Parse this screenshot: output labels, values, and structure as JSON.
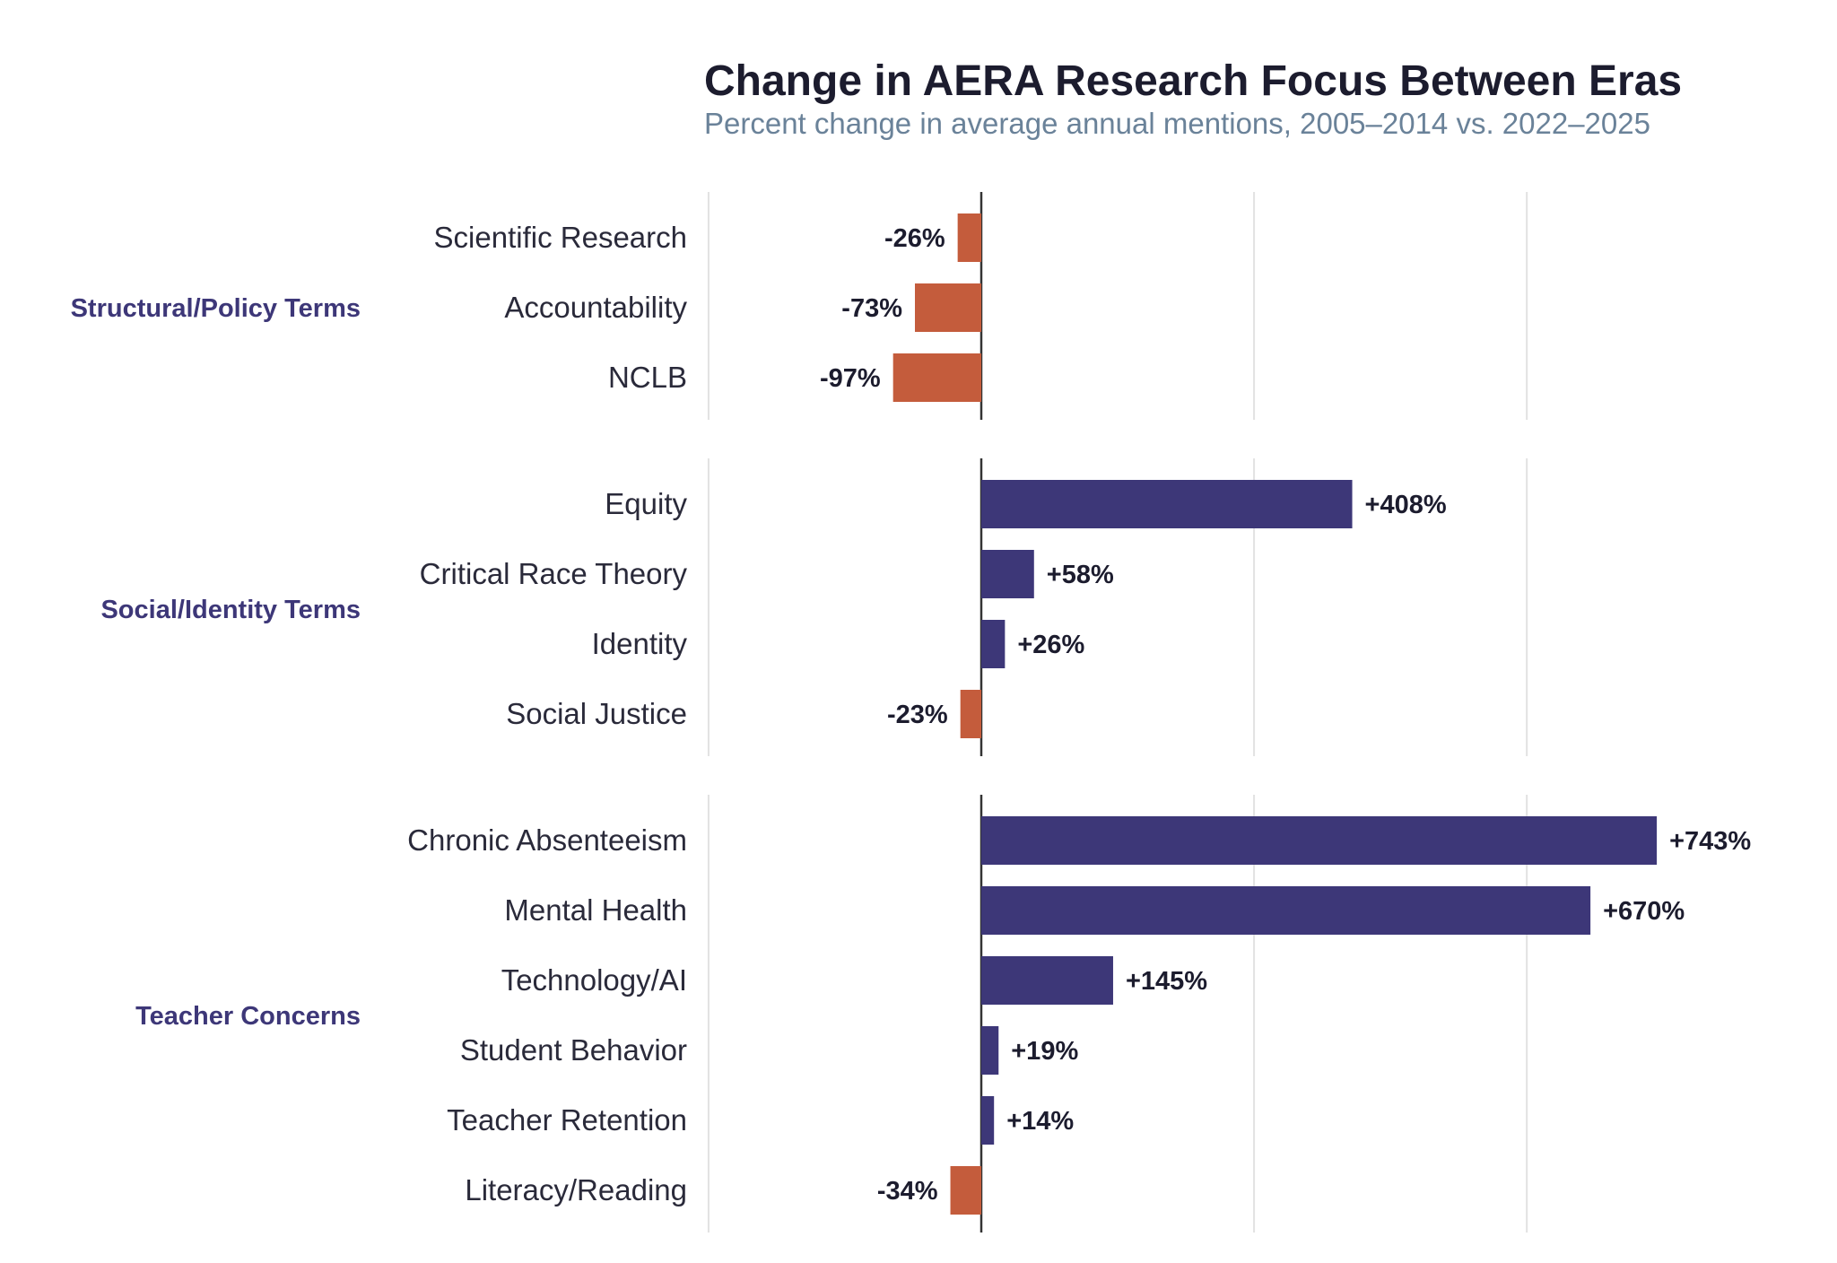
{
  "chart_data": {
    "type": "bar",
    "orientation": "horizontal",
    "title": "Change in AERA Research Focus Between Eras",
    "subtitle": "Percent change in average annual mentions, 2005–2014 vs. 2022–2025",
    "xlabel": "",
    "ylabel": "",
    "xlim": [
      -300,
      900
    ],
    "x_gridlines": [
      -300,
      0,
      300,
      600
    ],
    "grid": true,
    "colors": {
      "positive": "#3d3778",
      "negative": "#c45c3c",
      "group_label": "#3d3778"
    },
    "groups": [
      {
        "name": "Structural/Policy Terms",
        "items": [
          {
            "label": "Scientific Research",
            "value": -26,
            "text": "-26%"
          },
          {
            "label": "Accountability",
            "value": -73,
            "text": "-73%"
          },
          {
            "label": "NCLB",
            "value": -97,
            "text": "-97%"
          }
        ]
      },
      {
        "name": "Social/Identity Terms",
        "items": [
          {
            "label": "Equity",
            "value": 408,
            "text": "+408%"
          },
          {
            "label": "Critical Race Theory",
            "value": 58,
            "text": "+58%"
          },
          {
            "label": "Identity",
            "value": 26,
            "text": "+26%"
          },
          {
            "label": "Social Justice",
            "value": -23,
            "text": "-23%"
          }
        ]
      },
      {
        "name": "Teacher Concerns",
        "items": [
          {
            "label": "Chronic Absenteeism",
            "value": 743,
            "text": "+743%"
          },
          {
            "label": "Mental Health",
            "value": 670,
            "text": "+670%"
          },
          {
            "label": "Technology/AI",
            "value": 145,
            "text": "+145%"
          },
          {
            "label": "Student Behavior",
            "value": 19,
            "text": "+19%"
          },
          {
            "label": "Teacher Retention",
            "value": 14,
            "text": "+14%"
          },
          {
            "label": "Literacy/Reading",
            "value": -34,
            "text": "-34%"
          }
        ]
      }
    ]
  }
}
